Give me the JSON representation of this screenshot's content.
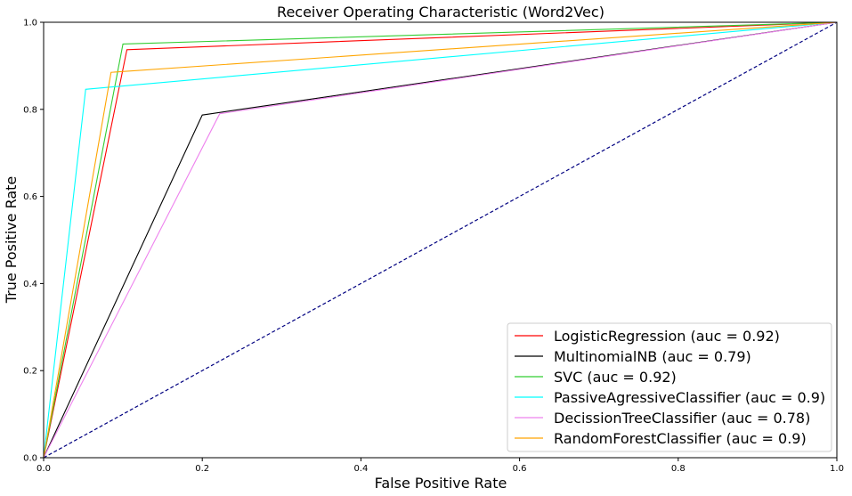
{
  "chart_data": {
    "type": "line",
    "title": "Receiver Operating Characteristic (Word2Vec)",
    "xlabel": "False Positive Rate",
    "ylabel": "True Positive Rate",
    "xlim": [
      0,
      1
    ],
    "ylim": [
      0,
      1
    ],
    "xticks": [
      "0.0",
      "0.2",
      "0.4",
      "0.6",
      "0.8",
      "1.0"
    ],
    "yticks": [
      "0.0",
      "0.2",
      "0.4",
      "0.6",
      "0.8",
      "1.0"
    ],
    "grid": false,
    "legend_position": "bottom-right",
    "series": [
      {
        "name": "LogisticRegression (auc = 0.92)",
        "color": "#ff0000",
        "x": [
          0,
          0.105,
          1
        ],
        "y": [
          0,
          0.937,
          1
        ]
      },
      {
        "name": "MultinomialNB (auc = 0.79)",
        "color": "#000000",
        "x": [
          0,
          0.2,
          1
        ],
        "y": [
          0,
          0.787,
          1
        ]
      },
      {
        "name": "SVC (auc = 0.92)",
        "color": "#32cd32",
        "x": [
          0,
          0.1,
          1
        ],
        "y": [
          0,
          0.95,
          1
        ]
      },
      {
        "name": "PassiveAgressiveClassifier (auc = 0.9)",
        "color": "#00ffff",
        "x": [
          0,
          0.053,
          1
        ],
        "y": [
          0,
          0.846,
          1
        ]
      },
      {
        "name": "DecissionTreeClassifier (auc = 0.78)",
        "color": "#ee82ee",
        "x": [
          0,
          0.222,
          1
        ],
        "y": [
          0,
          0.79,
          1
        ]
      },
      {
        "name": "RandomForestClassifier (auc = 0.9)",
        "color": "#ffa500",
        "x": [
          0,
          0.085,
          1
        ],
        "y": [
          0,
          0.885,
          1
        ]
      }
    ],
    "reference_line": {
      "color": "#000080",
      "style": "dashed",
      "x": [
        0,
        1
      ],
      "y": [
        0,
        1
      ]
    }
  }
}
